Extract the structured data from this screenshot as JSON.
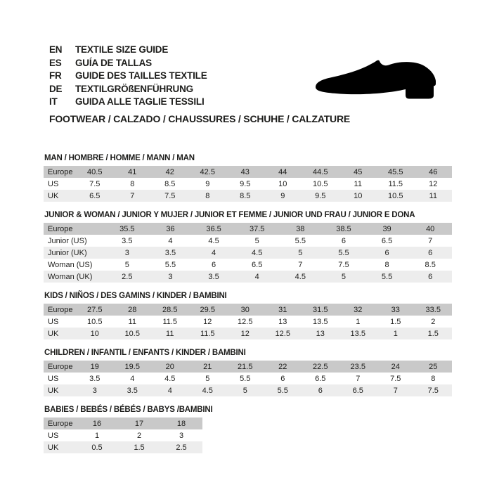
{
  "header": {
    "languages": [
      {
        "code": "EN",
        "text": "TEXTILE SIZE GUIDE"
      },
      {
        "code": "ES",
        "text": "GUÍA DE TALLAS"
      },
      {
        "code": "FR",
        "text": "GUIDE DES TAILLES TEXTILE"
      },
      {
        "code": "DE",
        "text": "TEXTILGRÖßENFÜHRUNG"
      },
      {
        "code": "IT",
        "text": "GUIDA ALLE TAGLIE TESSILI"
      }
    ],
    "category_line": "FOOTWEAR / CALZADO / CHAUSSURES / SCHUHE / CALZATURE",
    "shoe_icon": "dress-shoe-silhouette"
  },
  "colors": {
    "header_row": "#c9c9c9",
    "alt_row": "#ededed",
    "text": "#1d1d1b",
    "shoe": "#000000"
  },
  "tables": [
    {
      "title": "MAN / HOMBRE / HOMME / MANN / MAN",
      "rows": [
        {
          "label": "Europe",
          "values": [
            "40.5",
            "41",
            "42",
            "42.5",
            "43",
            "44",
            "44.5",
            "45",
            "45.5",
            "46"
          ]
        },
        {
          "label": "US",
          "values": [
            "7.5",
            "8",
            "8.5",
            "9",
            "9.5",
            "10",
            "10.5",
            "11",
            "11.5",
            "12"
          ]
        },
        {
          "label": "UK",
          "values": [
            "6.5",
            "7",
            "7.5",
            "8",
            "8.5",
            "9",
            "9.5",
            "10",
            "10.5",
            "11"
          ]
        }
      ]
    },
    {
      "title": "JUNIOR & WOMAN / JUNIOR Y MUJER / JUNIOR ET FEMME / JUNIOR UND FRAU / JUNIOR E DONA",
      "rows": [
        {
          "label": "Europe",
          "values": [
            "35.5",
            "36",
            "36.5",
            "37.5",
            "38",
            "38.5",
            "39",
            "40"
          ]
        },
        {
          "label": "Junior (US)",
          "values": [
            "3.5",
            "4",
            "4.5",
            "5",
            "5.5",
            "6",
            "6.5",
            "7"
          ]
        },
        {
          "label": "Junior (UK)",
          "values": [
            "3",
            "3.5",
            "4",
            "4.5",
            "5",
            "5.5",
            "6",
            "6"
          ]
        },
        {
          "label": "Woman (US)",
          "values": [
            "5",
            "5.5",
            "6",
            "6.5",
            "7",
            "7.5",
            "8",
            "8.5"
          ]
        },
        {
          "label": "Woman (UK)",
          "values": [
            "2.5",
            "3",
            "3.5",
            "4",
            "4.5",
            "5",
            "5.5",
            "6"
          ]
        }
      ]
    },
    {
      "title": "KIDS / NIÑOS / DES GAMINS / KINDER / BAMBINI",
      "rows": [
        {
          "label": "Europe",
          "values": [
            "27.5",
            "28",
            "28.5",
            "29.5",
            "30",
            "31",
            "31.5",
            "32",
            "33",
            "33.5"
          ]
        },
        {
          "label": "US",
          "values": [
            "10.5",
            "11",
            "11.5",
            "12",
            "12.5",
            "13",
            "13.5",
            "1",
            "1.5",
            "2"
          ]
        },
        {
          "label": "UK",
          "values": [
            "10",
            "10.5",
            "11",
            "11.5",
            "12",
            "12.5",
            "13",
            "13.5",
            "1",
            "1.5"
          ]
        }
      ]
    },
    {
      "title": "CHILDREN / INFANTIL / ENFANTS / KINDER / BAMBINI",
      "rows": [
        {
          "label": "Europe",
          "values": [
            "19",
            "19.5",
            "20",
            "21",
            "21.5",
            "22",
            "22.5",
            "23.5",
            "24",
            "25"
          ]
        },
        {
          "label": "US",
          "values": [
            "3.5",
            "4",
            "4.5",
            "5",
            "5.5",
            "6",
            "6.5",
            "7",
            "7.5",
            "8"
          ]
        },
        {
          "label": "UK",
          "values": [
            "3",
            "3.5",
            "4",
            "4.5",
            "5",
            "5.5",
            "6",
            "6.5",
            "7",
            "7.5"
          ]
        }
      ]
    },
    {
      "title": "BABIES  / BEBÉS / BÉBÉS / BABYS /BAMBINI",
      "rows": [
        {
          "label": "Europe",
          "values": [
            "16",
            "17",
            "18"
          ]
        },
        {
          "label": "US",
          "values": [
            "1",
            "2",
            "3"
          ]
        },
        {
          "label": "UK",
          "values": [
            "0.5",
            "1.5",
            "2.5"
          ]
        }
      ]
    }
  ]
}
